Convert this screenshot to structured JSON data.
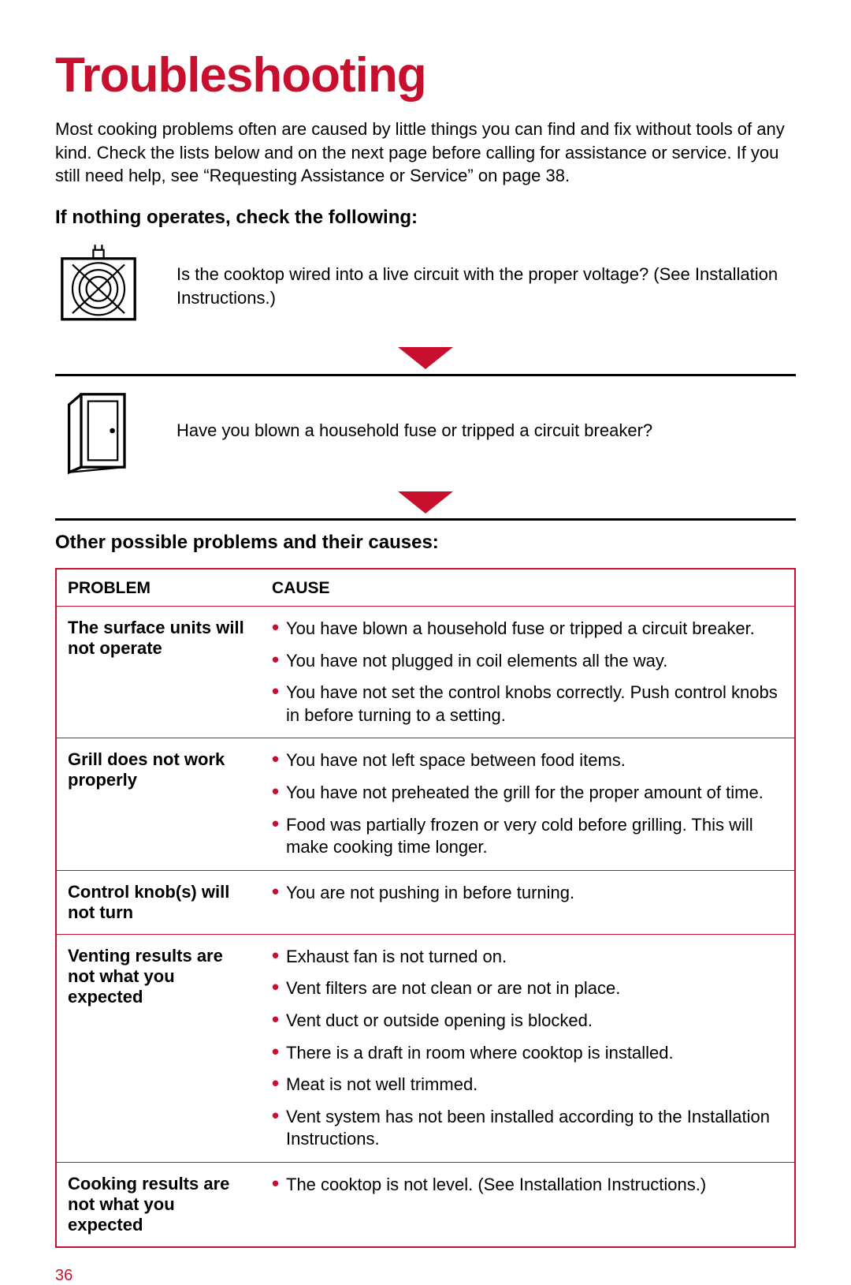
{
  "title": "Troubleshooting",
  "intro": "Most cooking problems often are caused by little things you can find and fix without tools of any kind. Check the lists below and on the next page before calling for assistance or service. If you still need help, see “Requesting Assistance or Service” on page 38.",
  "section1": {
    "heading": "If nothing operates, check the following:",
    "checks": [
      "Is the cooktop wired into a live circuit with the proper voltage? (See Installation Instructions.)",
      "Have you blown a household fuse or tripped a circuit breaker?"
    ]
  },
  "section2": {
    "heading": "Other possible problems and their causes:",
    "headers": {
      "problem": "PROBLEM",
      "cause": "CAUSE"
    },
    "rows": [
      {
        "problem": "The surface units will not operate",
        "causes": [
          "You have blown a household fuse or tripped a circuit breaker.",
          "You have not plugged in coil elements all the way.",
          "You have not set the control knobs correctly. Push control knobs in before turning to a setting."
        ]
      },
      {
        "problem": "Grill does not work properly",
        "causes": [
          "You have not left space between food items.",
          "You have not preheated the grill for the proper amount of time.",
          "Food was partially frozen or very cold before grilling. This will make cooking time longer."
        ]
      },
      {
        "problem": "Control knob(s) will not turn",
        "causes": [
          "You are not pushing in before turning."
        ]
      },
      {
        "problem": "Venting results are not what you expected",
        "causes": [
          "Exhaust fan is not turned on.",
          "Vent filters are not clean or are not in place.",
          "Vent duct or outside opening is blocked.",
          "There is a draft in room where cooktop is installed.",
          "Meat is not well trimmed.",
          "Vent system has not been installed according to the Installation Instructions."
        ]
      },
      {
        "problem": "Cooking results are not what you expected",
        "causes": [
          "The cooktop is not level. (See Installation Instructions.)"
        ]
      }
    ]
  },
  "page_number": "36",
  "colors": {
    "accent": "#c8102e",
    "text": "#000000",
    "bg": "#ffffff"
  }
}
